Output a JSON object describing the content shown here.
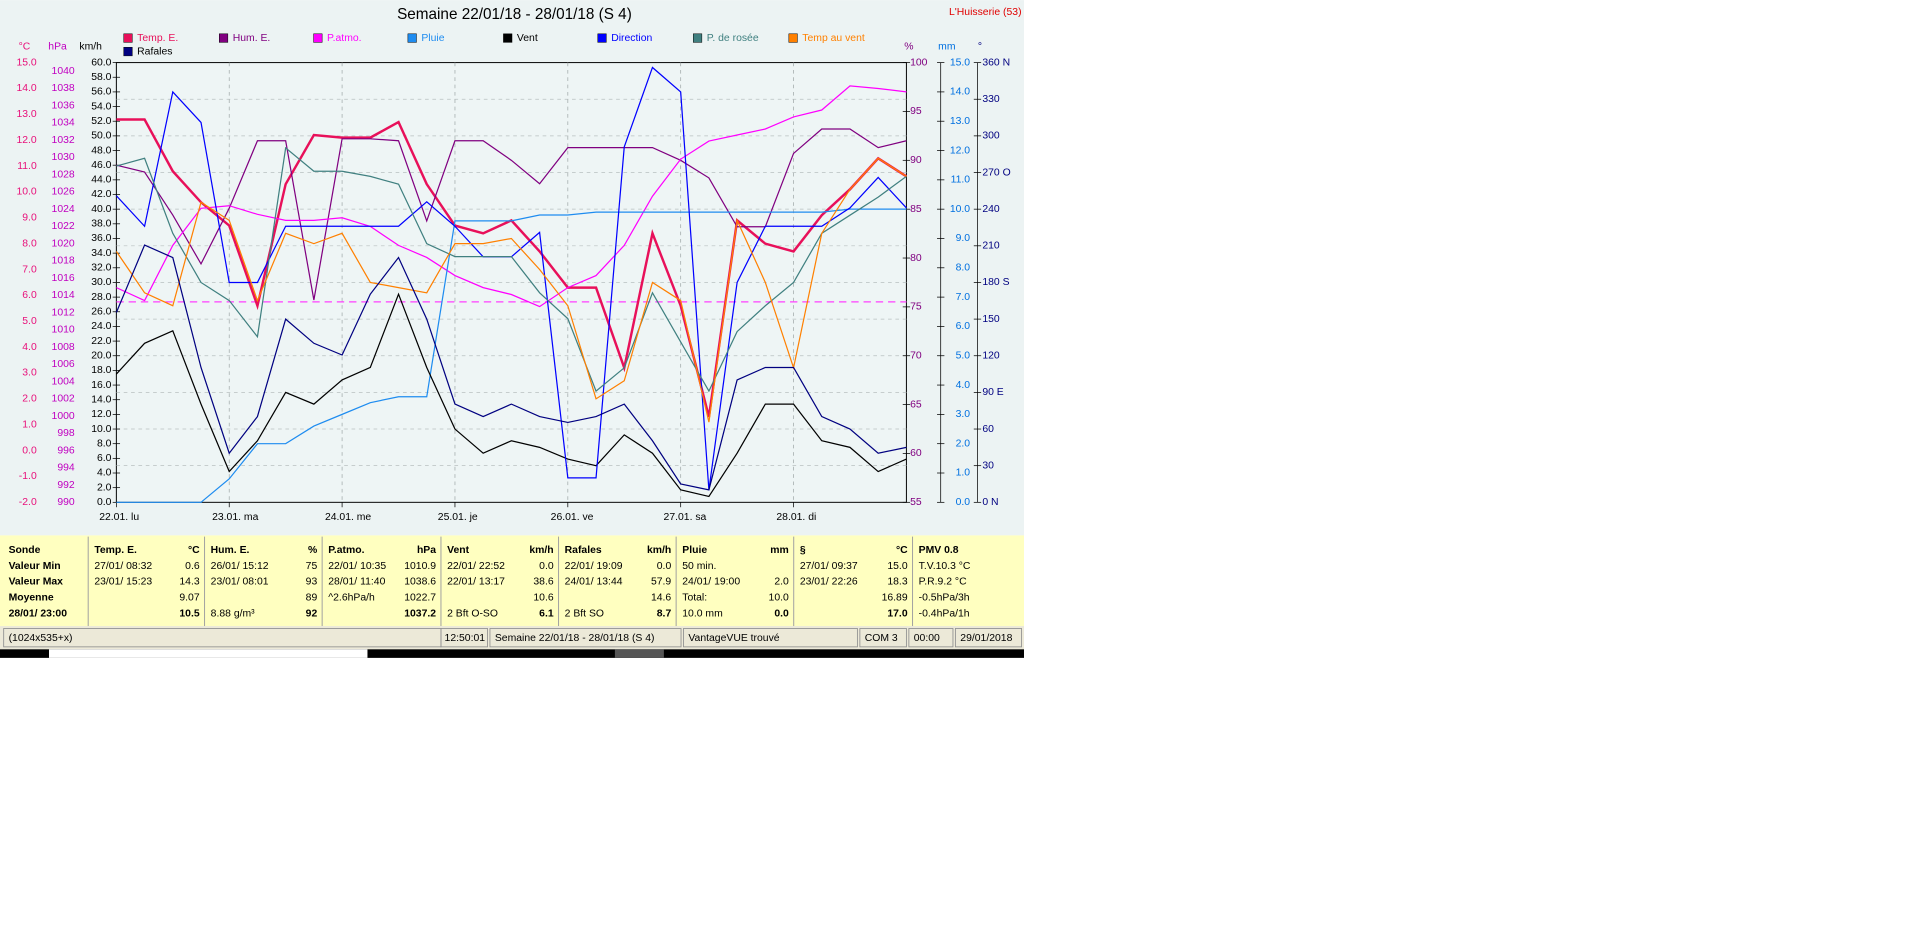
{
  "chart_data": {
    "type": "line",
    "title": "Semaine 22/01/18 - 28/01/18 (S 4)",
    "station": "L'Huisserie (53)",
    "x": [
      0,
      6,
      12,
      18,
      24,
      30,
      36,
      42,
      48,
      54,
      60,
      66,
      72,
      78,
      84,
      90,
      96,
      102,
      108,
      114,
      120,
      126,
      132,
      138,
      144,
      150,
      156,
      162,
      168
    ],
    "xlim": [
      0,
      168
    ],
    "xticks": [
      {
        "value": 0,
        "label": "22.01.  lu"
      },
      {
        "value": 24,
        "label": "23.01.  ma"
      },
      {
        "value": 48,
        "label": "24.01.  me"
      },
      {
        "value": 72,
        "label": "25.01.  je"
      },
      {
        "value": 96,
        "label": "26.01.  ve"
      },
      {
        "value": 120,
        "label": "27.01.  sa"
      },
      {
        "value": 144,
        "label": "28.01.  di"
      }
    ],
    "grid": true,
    "grid_axis": 5,
    "axes": [
      {
        "label": "°C",
        "color": "#e8107a",
        "lim": [
          -2,
          15
        ],
        "ticks": [
          {
            "value": -2,
            "label": "-2.0"
          },
          {
            "value": -1,
            "label": "-1.0"
          },
          {
            "value": 0,
            "label": "0.0"
          },
          {
            "value": 1,
            "label": "1.0"
          },
          {
            "value": 2,
            "label": "2.0"
          },
          {
            "value": 3,
            "label": "3.0"
          },
          {
            "value": 4,
            "label": "4.0"
          },
          {
            "value": 5,
            "label": "5.0"
          },
          {
            "value": 6,
            "label": "6.0"
          },
          {
            "value": 7,
            "label": "7.0"
          },
          {
            "value": 8,
            "label": "8.0"
          },
          {
            "value": 9,
            "label": "9.0"
          },
          {
            "value": 10,
            "label": "10.0"
          },
          {
            "value": 11,
            "label": "11.0"
          },
          {
            "value": 12,
            "label": "12.0"
          },
          {
            "value": 13,
            "label": "13.0"
          },
          {
            "value": 14,
            "label": "14.0"
          },
          {
            "value": 15,
            "label": "15.0"
          }
        ]
      },
      {
        "label": "hPa",
        "color": "#c000c0",
        "lim": [
          990,
          1041
        ],
        "ticks": [
          990,
          992,
          994,
          996,
          998,
          1000,
          1002,
          1004,
          1006,
          1008,
          1010,
          1012,
          1014,
          1016,
          1018,
          1020,
          1022,
          1024,
          1026,
          1028,
          1030,
          1032,
          1034,
          1036,
          1038,
          1040
        ]
      },
      {
        "label": "km/h",
        "color": "#000000",
        "lim": [
          0,
          60
        ],
        "ticks": [
          {
            "value": 0,
            "label": "0.0"
          },
          {
            "value": 2,
            "label": "2.0"
          },
          {
            "value": 4,
            "label": "4.0"
          },
          {
            "value": 6,
            "label": "6.0"
          },
          {
            "value": 8,
            "label": "8.0"
          },
          {
            "value": 10,
            "label": "10.0"
          },
          {
            "value": 12,
            "label": "12.0"
          },
          {
            "value": 14,
            "label": "14.0"
          },
          {
            "value": 16,
            "label": "16.0"
          },
          {
            "value": 18,
            "label": "18.0"
          },
          {
            "value": 20,
            "label": "20.0"
          },
          {
            "value": 22,
            "label": "22.0"
          },
          {
            "value": 24,
            "label": "24.0"
          },
          {
            "value": 26,
            "label": "26.0"
          },
          {
            "value": 28,
            "label": "28.0"
          },
          {
            "value": 30,
            "label": "30.0"
          },
          {
            "value": 32,
            "label": "32.0"
          },
          {
            "value": 34,
            "label": "34.0"
          },
          {
            "value": 36,
            "label": "36.0"
          },
          {
            "value": 38,
            "label": "38.0"
          },
          {
            "value": 40,
            "label": "40.0"
          },
          {
            "value": 42,
            "label": "42.0"
          },
          {
            "value": 44,
            "label": "44.0"
          },
          {
            "value": 46,
            "label": "46.0"
          },
          {
            "value": 48,
            "label": "48.0"
          },
          {
            "value": 50,
            "label": "50.0"
          },
          {
            "value": 52,
            "label": "52.0"
          },
          {
            "value": 54,
            "label": "54.0"
          },
          {
            "value": 56,
            "label": "56.0"
          },
          {
            "value": 58,
            "label": "58.0"
          },
          {
            "value": 60,
            "label": "60.0"
          }
        ]
      },
      {
        "label": "%",
        "color": "#800080",
        "lim": [
          55,
          100
        ],
        "ticks": [
          55,
          60,
          65,
          70,
          75,
          80,
          85,
          90,
          95,
          100
        ]
      },
      {
        "label": "mm",
        "color": "#0070e0",
        "lim": [
          0,
          15
        ],
        "ticks": [
          {
            "value": 0,
            "label": "0.0"
          },
          {
            "value": 1,
            "label": "1.0"
          },
          {
            "value": 2,
            "label": "2.0"
          },
          {
            "value": 3,
            "label": "3.0"
          },
          {
            "value": 4,
            "label": "4.0"
          },
          {
            "value": 5,
            "label": "5.0"
          },
          {
            "value": 6,
            "label": "6.0"
          },
          {
            "value": 7,
            "label": "7.0"
          },
          {
            "value": 8,
            "label": "8.0"
          },
          {
            "value": 9,
            "label": "9.0"
          },
          {
            "value": 10,
            "label": "10.0"
          },
          {
            "value": 11,
            "label": "11.0"
          },
          {
            "value": 12,
            "label": "12.0"
          },
          {
            "value": 13,
            "label": "13.0"
          },
          {
            "value": 14,
            "label": "14.0"
          },
          {
            "value": 15,
            "label": "15.0"
          }
        ]
      },
      {
        "label": "°",
        "color": "#000080",
        "lim": [
          0,
          360
        ],
        "ticks": [
          {
            "value": 0,
            "label": "0    N"
          },
          30,
          60,
          {
            "value": 90,
            "label": "90  E"
          },
          120,
          150,
          {
            "value": 180,
            "label": "180 S"
          },
          210,
          240,
          {
            "value": 270,
            "label": "270 O"
          },
          300,
          330,
          {
            "value": 360,
            "label": "360 N"
          }
        ]
      }
    ],
    "series": [
      {
        "name": "Temp. E.",
        "color": "#e8105a",
        "axis": 0,
        "width": 2,
        "values": [
          12.8,
          12.8,
          10.8,
          9.6,
          8.7,
          5.6,
          10.3,
          12.2,
          12.1,
          12.1,
          12.7,
          10.3,
          8.7,
          8.4,
          8.9,
          7.7,
          6.3,
          6.3,
          3.2,
          8.4,
          5.6,
          1.3,
          8.9,
          8.0,
          7.7,
          9.1,
          10.1,
          11.3,
          10.6
        ]
      },
      {
        "name": "Hum. E.",
        "color": "#800080",
        "axis": 3,
        "values": [
          89.5,
          88.8,
          84.4,
          79.4,
          85.1,
          92,
          92,
          75.7,
          92.2,
          92.2,
          92,
          83.8,
          92,
          92,
          90,
          87.6,
          91.3,
          91.3,
          91.3,
          91.3,
          90,
          88.2,
          83.2,
          83.2,
          90.7,
          93.2,
          93.2,
          91.3,
          92
        ]
      },
      {
        "name": "P.atmo.",
        "color": "#ff00ff",
        "axis": 1,
        "values": [
          1014.9,
          1013.4,
          1019.8,
          1024.1,
          1024.4,
          1023.4,
          1022.7,
          1022.7,
          1023,
          1022,
          1019.8,
          1018.4,
          1016.3,
          1014.9,
          1014.1,
          1012.7,
          1014.9,
          1016.3,
          1019.8,
          1025.5,
          1029.8,
          1031.9,
          1032.6,
          1033.3,
          1034.7,
          1035.5,
          1038.3,
          1038,
          1037.6
        ]
      },
      {
        "name": "Pluie",
        "color": "#1e8cf0",
        "axis": 4,
        "values": [
          0,
          0,
          0,
          0,
          0.8,
          2.0,
          2.0,
          2.6,
          3.0,
          3.4,
          3.6,
          3.6,
          9.6,
          9.6,
          9.6,
          9.8,
          9.8,
          9.9,
          9.9,
          9.9,
          9.9,
          9.9,
          9.9,
          9.9,
          9.9,
          9.9,
          10,
          10,
          10
        ]
      },
      {
        "name": "Vent",
        "color": "#000000",
        "axis": 2,
        "values": [
          17.5,
          21.7,
          23.4,
          13.4,
          4.2,
          8.4,
          15,
          13.4,
          16.7,
          18.4,
          28.4,
          18.4,
          10,
          6.7,
          8.4,
          7.5,
          5.9,
          5,
          9.2,
          6.7,
          1.7,
          0.8,
          6.7,
          13.4,
          13.4,
          8.4,
          7.5,
          4.2,
          5.9
        ]
      },
      {
        "name": "Direction",
        "color": "#0000ff",
        "axis": 5,
        "values": [
          251,
          226,
          336,
          311,
          180,
          180,
          226,
          226,
          226,
          226,
          226,
          246,
          226,
          201,
          201,
          221,
          20,
          20,
          291,
          356,
          336,
          10,
          180,
          226,
          226,
          226,
          241,
          266,
          241
        ]
      },
      {
        "name": "P. de rosée",
        "color": "#408080",
        "axis": 0,
        "values": [
          11.0,
          11.3,
          8.4,
          6.5,
          5.8,
          4.4,
          11.7,
          10.8,
          10.8,
          10.6,
          10.3,
          8.0,
          7.5,
          7.5,
          7.5,
          6.1,
          5.1,
          2.3,
          3.2,
          6.1,
          4.2,
          2.3,
          4.6,
          5.6,
          6.5,
          8.4,
          9.1,
          9.8,
          10.6
        ]
      },
      {
        "name": "Temp au vent",
        "color": "#ff8000",
        "axis": 0,
        "values": [
          7.7,
          6.1,
          5.6,
          9.6,
          8.9,
          5.8,
          8.4,
          8.0,
          8.4,
          6.5,
          6.3,
          6.1,
          8.0,
          8.0,
          8.2,
          7.0,
          5.6,
          2.0,
          2.7,
          6.5,
          5.8,
          1.1,
          8.9,
          6.5,
          3.2,
          8.4,
          10.1,
          11.3,
          10.6
        ]
      },
      {
        "name": "Rafales",
        "color": "#000080",
        "axis": 2,
        "values": [
          25.9,
          35.1,
          33.4,
          18.4,
          6.7,
          11.7,
          25,
          21.7,
          20.1,
          28.4,
          33.4,
          25,
          13.4,
          11.7,
          13.4,
          11.7,
          10.9,
          11.7,
          13.4,
          8.4,
          2.5,
          1.7,
          16.7,
          18.4,
          18.4,
          11.7,
          10,
          6.7,
          7.5
        ]
      }
    ],
    "reference_line": {
      "value": 1013.25,
      "axis": 1,
      "color": "#ff40ff"
    }
  },
  "stats_table": {
    "row_labels": [
      "Sonde",
      "Valeur Min",
      "Valeur Max",
      "Moyenne",
      "28/01/ 23:00"
    ],
    "columns": [
      {
        "title": "Temp. E.",
        "unit": "°C",
        "rows": [
          {
            "left": "27/01/ 08:32",
            "right": "0.6"
          },
          {
            "left": "23/01/ 15:23",
            "right": "14.3"
          },
          {
            "right": "9.07"
          },
          {
            "right": "10.5"
          }
        ]
      },
      {
        "title": "Hum. E.",
        "unit": "%",
        "rows": [
          {
            "left": "26/01/ 15:12",
            "right": "75"
          },
          {
            "left": "23/01/ 08:01",
            "right": "93"
          },
          {
            "right": "89"
          },
          {
            "left": "8.88 g/m³",
            "right": "92"
          }
        ]
      },
      {
        "title": "P.atmo.",
        "unit": "hPa",
        "rows": [
          {
            "left": "22/01/ 10:35",
            "right": "1010.9"
          },
          {
            "left": "28/01/ 11:40",
            "right": "1038.6"
          },
          {
            "left": "^2.6hPa/h",
            "right": "1022.7"
          },
          {
            "right": "1037.2"
          }
        ]
      },
      {
        "title": "Vent",
        "unit": "km/h",
        "rows": [
          {
            "left": "22/01/ 22:52",
            "right": "0.0"
          },
          {
            "left": "22/01/ 13:17",
            "right": "38.6"
          },
          {
            "right": "10.6"
          },
          {
            "left": "2 Bft O-SO",
            "right": "6.1"
          }
        ]
      },
      {
        "title": "Rafales",
        "unit": "km/h",
        "rows": [
          {
            "left": "22/01/ 19:09",
            "right": "0.0"
          },
          {
            "left": "24/01/ 13:44",
            "right": "57.9"
          },
          {
            "right": "14.6"
          },
          {
            "left": "2 Bft SO",
            "right": "8.7"
          }
        ]
      },
      {
        "title": "Pluie",
        "unit": "mm",
        "rows": [
          {
            "left": "50 min."
          },
          {
            "left": "24/01/ 19:00",
            "right": "2.0"
          },
          {
            "left": "Total:",
            "right": "10.0"
          },
          {
            "left": "10.0 mm",
            "right": "0.0"
          }
        ]
      },
      {
        "title": "§",
        "unit": "°C",
        "rows": [
          {
            "left": "27/01/ 09:37",
            "right": "15.0"
          },
          {
            "left": "23/01/ 22:26",
            "right": "18.3"
          },
          {
            "right": "16.89"
          },
          {
            "right": "17.0"
          }
        ]
      },
      {
        "title": "PMV 0.8",
        "rows": [
          {
            "left": "T.V.10.3 °C"
          },
          {
            "left": "P.R.9.2 °C"
          },
          {
            "left": "-0.5hPa/3h"
          },
          {
            "left": "-0.4hPa/1h"
          }
        ]
      }
    ]
  },
  "status_bar": [
    "(1024x535+x)",
    "12:50:01",
    "Semaine 22/01/18 - 28/01/18 (S 4)",
    "VantageVUE trouvé",
    "COM 3",
    "00:00",
    "29/01/2018"
  ]
}
